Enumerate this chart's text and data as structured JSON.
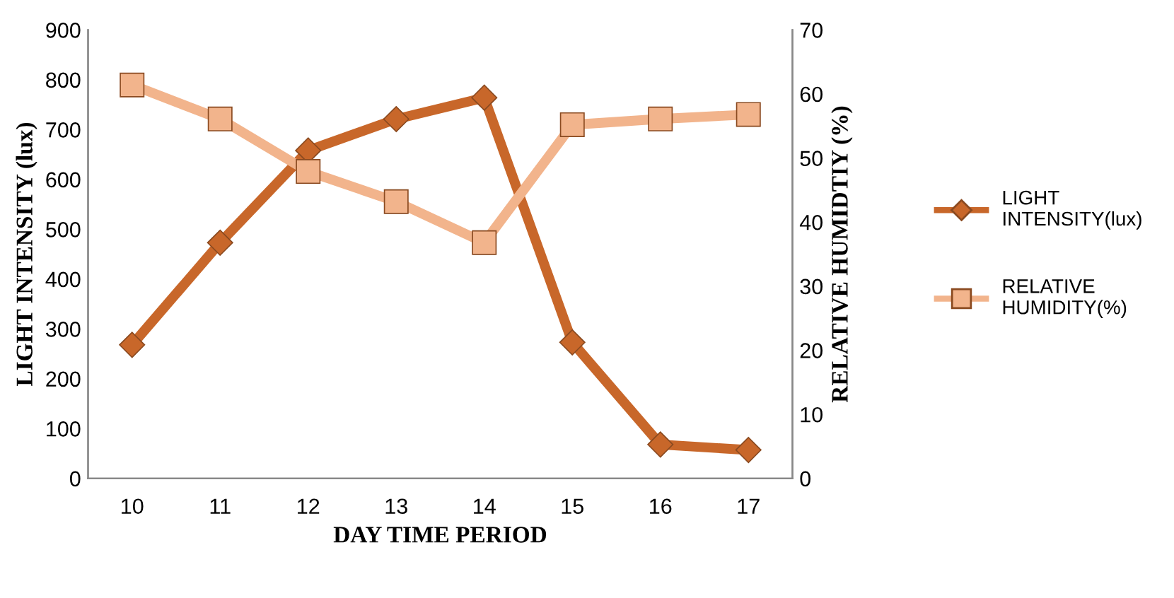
{
  "chart_data": {
    "type": "line",
    "xlabel": "DAY TIME PERIOD",
    "ylabel": "LIGHT INTENSITY (lux)",
    "y2label": "RELATIVE HUMIDTIY (%)",
    "categories": [
      "10",
      "11",
      "12",
      "13",
      "14",
      "15",
      "16",
      "17"
    ],
    "series": [
      {
        "name": "LIGHT\nINTENSITY(lux)",
        "color": "#c8672a",
        "marker": "diamond",
        "values": [
          268,
          473,
          658,
          721,
          764,
          273,
          68,
          57
        ]
      },
      {
        "name": "RELATIVE\nHUMIDITY(%)",
        "color": "#f2b48c",
        "marker": "square",
        "axis": "y2",
        "values": [
          61.4,
          56.1,
          47.9,
          43.2,
          36.8,
          55.2,
          56.1,
          56.8
        ]
      }
    ],
    "ylim": [
      0,
      900
    ],
    "yticks": [
      0,
      100,
      200,
      300,
      400,
      500,
      600,
      700,
      800,
      900
    ],
    "y2lim": [
      0,
      70
    ],
    "y2ticks": [
      0,
      10,
      20,
      30,
      40,
      50,
      60,
      70
    ],
    "grid": false,
    "legend": "right"
  }
}
